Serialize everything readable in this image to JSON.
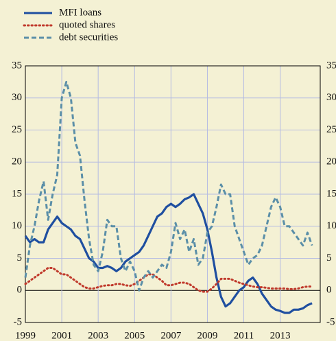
{
  "chart_data": {
    "type": "line",
    "x": [
      1999,
      1999.25,
      1999.5,
      1999.75,
      2000,
      2000.25,
      2000.5,
      2000.75,
      2001,
      2001.25,
      2001.5,
      2001.75,
      2002,
      2002.25,
      2002.5,
      2002.75,
      2003,
      2003.25,
      2003.5,
      2003.75,
      2004,
      2004.25,
      2004.5,
      2004.75,
      2005,
      2005.25,
      2005.5,
      2005.75,
      2006,
      2006.25,
      2006.5,
      2006.75,
      2007,
      2007.25,
      2007.5,
      2007.75,
      2008,
      2008.25,
      2008.5,
      2008.75,
      2009,
      2009.25,
      2009.5,
      2009.75,
      2010,
      2010.25,
      2010.5,
      2010.75,
      2011,
      2011.25,
      2011.5,
      2011.75,
      2012,
      2012.25,
      2012.5,
      2012.75,
      2013,
      2013.25,
      2013.5,
      2013.75,
      2014,
      2014.25,
      2014.5,
      2014.75
    ],
    "series": [
      {
        "name": "MFI loans",
        "color": "#1f4fa0",
        "style": "solid",
        "values": [
          8.5,
          7.5,
          8,
          7.5,
          7.5,
          9.5,
          10.5,
          11.5,
          10.5,
          10,
          9.5,
          8.5,
          8,
          6.5,
          5,
          4.5,
          3.5,
          3.5,
          3.8,
          3.5,
          3,
          3.5,
          4.5,
          5,
          5.5,
          6,
          7,
          8.5,
          10,
          11.5,
          12,
          13,
          13.5,
          13,
          13.5,
          14.2,
          14.5,
          15,
          13.5,
          12,
          9.5,
          6,
          2,
          -1,
          -2.5,
          -2,
          -1,
          0,
          0.5,
          1.5,
          2,
          1,
          -0.5,
          -1.5,
          -2.5,
          -3,
          -3.2,
          -3.5,
          -3.5,
          -3,
          -3,
          -2.8,
          -2.3,
          -2
        ]
      },
      {
        "name": "quoted shares",
        "color": "#c0392b",
        "style": "dotted",
        "values": [
          1,
          1.5,
          2,
          2.5,
          3,
          3.5,
          3.5,
          3,
          2.5,
          2.5,
          2,
          1.5,
          1,
          0.5,
          0.3,
          0.3,
          0.5,
          0.7,
          0.8,
          0.8,
          1,
          1,
          0.8,
          0.7,
          1,
          1.5,
          2,
          2.5,
          2.5,
          2,
          1.5,
          0.8,
          0.8,
          1,
          1.2,
          1.2,
          1,
          0.5,
          0,
          -0.2,
          -0.2,
          0.3,
          1,
          1.8,
          1.8,
          1.8,
          1.5,
          1.2,
          1,
          0.8,
          0.6,
          0.5,
          0.5,
          0.4,
          0.3,
          0.3,
          0.3,
          0.3,
          0.2,
          0.2,
          0.3,
          0.5,
          0.6,
          0.6
        ]
      },
      {
        "name": "debt securities",
        "color": "#5b8fa8",
        "style": "dashed",
        "values": [
          2,
          7,
          10,
          14,
          17,
          11,
          15,
          18,
          30,
          32.5,
          30,
          23,
          21,
          14,
          8,
          4,
          3,
          6,
          11,
          10,
          10,
          5,
          3,
          4.5,
          3,
          0,
          2,
          3,
          2,
          3,
          4,
          3.5,
          6,
          10.5,
          8,
          9.5,
          6,
          8,
          4,
          5,
          9,
          10,
          13,
          16.5,
          15,
          15,
          10,
          8,
          6,
          4,
          5,
          5.5,
          7,
          10,
          13,
          14.5,
          13,
          10,
          10,
          9,
          8,
          7,
          9,
          7
        ]
      }
    ],
    "xlim": [
      1999,
      2015.2
    ],
    "xticks": [
      1999,
      2001,
      2003,
      2005,
      2007,
      2009,
      2011,
      2013
    ],
    "ylim": [
      -5,
      35
    ],
    "yticks": [
      -5,
      0,
      5,
      10,
      15,
      20,
      25,
      30,
      35
    ],
    "grid": true,
    "legend": "top-left"
  }
}
